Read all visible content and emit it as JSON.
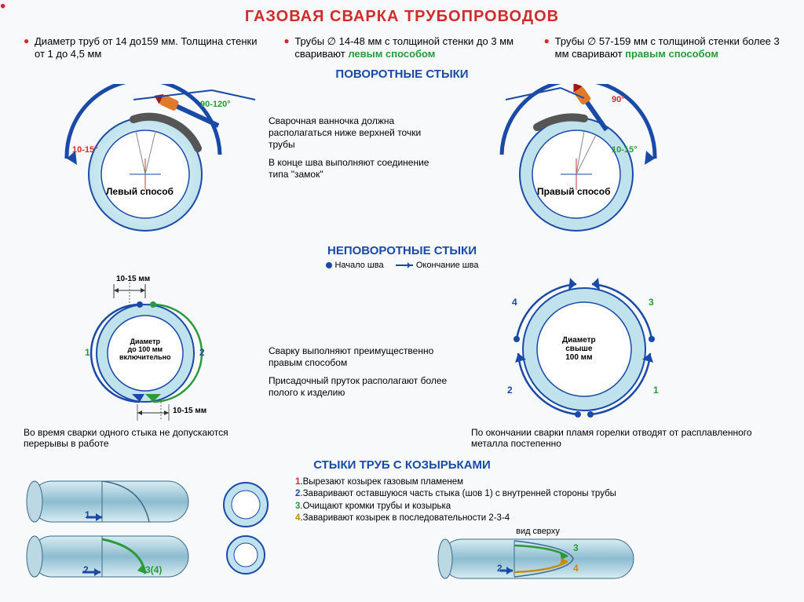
{
  "colors": {
    "title": "#d22b2b",
    "bullet": "#d22b2b",
    "section": "#1a4aa8",
    "green": "#2a9a3a",
    "arrowBlue": "#1a4aa8",
    "pipeFill": "#bfe2ec",
    "pipeStroke": "#1a4aa8",
    "pipeInner": "#ffffff",
    "orange": "#e07a2a",
    "darkRed": "#a01818",
    "grey": "#5a5a5a",
    "tubeFill": "linear-gradient(#cfe6ee,#8cbcd0,#cfe6ee)"
  },
  "title": "ГАЗОВАЯ СВАРКА ТРУБОПРОВОДОВ",
  "topBullets": [
    {
      "pre": "Диаметр труб от 14 до159 мм. Толщина стенки от 1 до 4,5 мм"
    },
    {
      "pre": "Трубы ∅ 14-48 мм с толщиной стенки до 3 мм сваривают ",
      "em": "левым способом",
      "emColor": "#2a9a3a"
    },
    {
      "pre": "Трубы ∅ 57-159 мм с толщиной стенки более 3 мм сваривают ",
      "em": "правым способом",
      "emColor": "#2a9a3a"
    }
  ],
  "sec1": {
    "title": "ПОВОРОТНЫЕ СТЫКИ",
    "leftAngle1": "90-120°",
    "leftAngle2": "10-15°",
    "leftCaption": "Левый способ",
    "rightAngle1": "90°",
    "rightAngle2": "10-15°",
    "rightCaption": "Правый способ",
    "midBullets": [
      "Сварочная ванночка должна располагаться ниже верхней точки трубы",
      "В конце шва выполняют соединение типа \"замок\""
    ]
  },
  "sec2": {
    "title": "НЕПОВОРОТНЫЕ СТЫКИ",
    "legendDot": "Начало шва",
    "legendArrow": "Окончание шва",
    "leftTopDim": "10-15 мм",
    "leftBotDim": "10-15 мм",
    "leftInner": "Диаметр\nдо 100 мм\nвключительно",
    "rightInner": "Диаметр\nсвыше\n100 мм",
    "leftSegs": [
      "1",
      "2"
    ],
    "rightSegs": [
      "1",
      "2",
      "3",
      "4"
    ],
    "midBullets": [
      "Сварку выполняют преимущественно правым способом",
      "Присадочный пруток располагают более полого к изделию"
    ],
    "botBullets": [
      "Во время сварки одного стыка не допускаются перерывы в работе",
      "По окончании сварки пламя горелки отводят от расплавленного металла постепенно"
    ]
  },
  "sec3": {
    "title": "СТЫКИ ТРУБ С КОЗЫРЬКАМИ",
    "steps": [
      {
        "n": "1",
        "c": "#d22b2b",
        "t": "Вырезают козырек газовым пламенем"
      },
      {
        "n": "2",
        "c": "#1a4aa8",
        "t": "Заваривают оставшуюся часть стыка (шов 1) с внутренней стороны трубы"
      },
      {
        "n": "3",
        "c": "#2a9a3a",
        "t": "Очищают кромки трубы и козырька"
      },
      {
        "n": "4",
        "c": "#c98a00",
        "t": "Заваривают козырек в последовательности 2-3-4"
      }
    ],
    "tubeLabels": {
      "a": "1",
      "b": "2",
      "c": "3(4)",
      "d1": "2",
      "d2": "3",
      "d3": "4"
    },
    "topViewLabel": "вид сверху"
  }
}
